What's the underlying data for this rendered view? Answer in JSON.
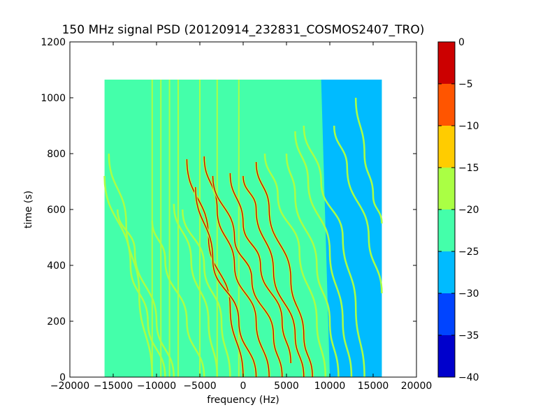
{
  "chart_data": {
    "type": "heatmap",
    "title": "150 MHz signal PSD (20120914_232831_COSMOS2407_TRO)",
    "xlabel": "frequency (Hz)",
    "ylabel": "time (s)",
    "xlim": [
      -20000,
      20000
    ],
    "ylim": [
      0,
      1200
    ],
    "x_ticks": [
      -20000,
      -15000,
      -10000,
      -5000,
      0,
      5000,
      10000,
      15000,
      20000
    ],
    "x_tick_labels": [
      "−20000",
      "−15000",
      "−10000",
      "−5000",
      "0",
      "5000",
      "10000",
      "15000",
      "20000"
    ],
    "y_ticks": [
      0,
      200,
      400,
      600,
      800,
      1000,
      1200
    ],
    "y_tick_labels": [
      "0",
      "200",
      "400",
      "600",
      "800",
      "1000",
      "1200"
    ],
    "data_extent": {
      "x": [
        -16000,
        16000
      ],
      "y": [
        0,
        1065
      ]
    },
    "background_level_range": [
      -25,
      -20
    ],
    "low_region": {
      "level_range": [
        -30,
        -25
      ],
      "x_at_top": 9000,
      "x_at_bottom": 10000
    },
    "colorbar": {
      "levels": [
        -40,
        -35,
        -30,
        -25,
        -20,
        -15,
        -10,
        -5,
        0
      ],
      "tick_labels": [
        "−40",
        "−35",
        "−30",
        "−25",
        "−20",
        "−15",
        "−10",
        "−5",
        "0"
      ],
      "colors": [
        "#0000cc",
        "#0044ff",
        "#00bbff",
        "#44ffaa",
        "#aaff44",
        "#ffcc00",
        "#ff5500",
        "#cc0000"
      ]
    },
    "series": [
      {
        "values": [
          [
            -10500,
            0
          ],
          [
            -12000,
            300
          ],
          [
            -13500,
            550
          ],
          [
            -15500,
            800
          ]
        ],
        "level": "bright"
      },
      {
        "values": [
          [
            -9000,
            0
          ],
          [
            -11000,
            200
          ],
          [
            -13000,
            400
          ],
          [
            -16000,
            720
          ]
        ],
        "level": "bright"
      },
      {
        "values": [
          [
            -8000,
            0
          ],
          [
            -10000,
            200
          ],
          [
            -12500,
            450
          ],
          [
            -14500,
            600
          ]
        ],
        "level": "bright"
      },
      {
        "values": [
          [
            -4500,
            0
          ],
          [
            -6500,
            200
          ],
          [
            -9000,
            420
          ],
          [
            -10500,
            560
          ]
        ],
        "level": "bright"
      },
      {
        "values": [
          [
            -3000,
            0
          ],
          [
            -4000,
            200
          ],
          [
            -6000,
            420
          ],
          [
            -8000,
            620
          ]
        ],
        "level": "bright"
      },
      {
        "values": [
          [
            -1500,
            0
          ],
          [
            -2500,
            200
          ],
          [
            -4500,
            400
          ],
          [
            -7000,
            600
          ]
        ],
        "level": "bright"
      },
      {
        "values": [
          [
            0,
            0
          ],
          [
            -1500,
            250
          ],
          [
            -4000,
            500
          ],
          [
            -6500,
            780
          ]
        ],
        "level": "strong"
      },
      {
        "values": [
          [
            1500,
            0
          ],
          [
            -500,
            200
          ],
          [
            -3500,
            420
          ],
          [
            -5500,
            680
          ]
        ],
        "level": "strong"
      },
      {
        "values": [
          [
            3000,
            0
          ],
          [
            1500,
            200
          ],
          [
            -1000,
            400
          ],
          [
            -3000,
            600
          ],
          [
            -4500,
            790
          ]
        ],
        "level": "strong"
      },
      {
        "values": [
          [
            4500,
            0
          ],
          [
            3500,
            150
          ],
          [
            1000,
            350
          ],
          [
            -1000,
            500
          ],
          [
            -3500,
            720
          ]
        ],
        "level": "strong"
      },
      {
        "values": [
          [
            5500,
            50
          ],
          [
            4500,
            200
          ],
          [
            2000,
            400
          ],
          [
            0,
            550
          ],
          [
            -1500,
            730
          ]
        ],
        "level": "strong"
      },
      {
        "values": [
          [
            7000,
            0
          ],
          [
            6000,
            150
          ],
          [
            3500,
            380
          ],
          [
            1500,
            600
          ],
          [
            0,
            720
          ]
        ],
        "level": "strong"
      },
      {
        "values": [
          [
            8000,
            0
          ],
          [
            7000,
            150
          ],
          [
            5500,
            350
          ],
          [
            3000,
            600
          ],
          [
            1500,
            770
          ]
        ],
        "level": "strong"
      },
      {
        "values": [
          [
            9500,
            0
          ],
          [
            8500,
            200
          ],
          [
            6500,
            450
          ],
          [
            4000,
            650
          ],
          [
            2500,
            800
          ]
        ],
        "level": "bright"
      },
      {
        "values": [
          [
            11000,
            0
          ],
          [
            10000,
            200
          ],
          [
            8500,
            400
          ],
          [
            6000,
            650
          ],
          [
            5000,
            800
          ]
        ],
        "level": "bright"
      },
      {
        "values": [
          [
            12500,
            0
          ],
          [
            11500,
            200
          ],
          [
            10000,
            450
          ],
          [
            7500,
            700
          ],
          [
            6000,
            880
          ]
        ],
        "level": "bright"
      },
      {
        "values": [
          [
            14000,
            0
          ],
          [
            13000,
            250
          ],
          [
            11500,
            500
          ],
          [
            9000,
            700
          ],
          [
            7000,
            900
          ]
        ],
        "level": "bright"
      },
      {
        "values": [
          [
            16000,
            300
          ],
          [
            14500,
            500
          ],
          [
            12000,
            750
          ],
          [
            10500,
            900
          ]
        ],
        "level": "bright"
      },
      {
        "values": [
          [
            16000,
            550
          ],
          [
            15000,
            650
          ],
          [
            14000,
            800
          ],
          [
            13000,
            1000
          ]
        ],
        "level": "bright"
      }
    ],
    "vertical_lines": [
      {
        "x": -10500,
        "level": "bright"
      },
      {
        "x": -9500,
        "level": "bright"
      },
      {
        "x": -8500,
        "level": "bright"
      },
      {
        "x": -7500,
        "level": "bright"
      },
      {
        "x": -5000,
        "level": "bright"
      },
      {
        "x": -3000,
        "level": "bright"
      },
      {
        "x": -500,
        "level": "bright"
      }
    ]
  }
}
